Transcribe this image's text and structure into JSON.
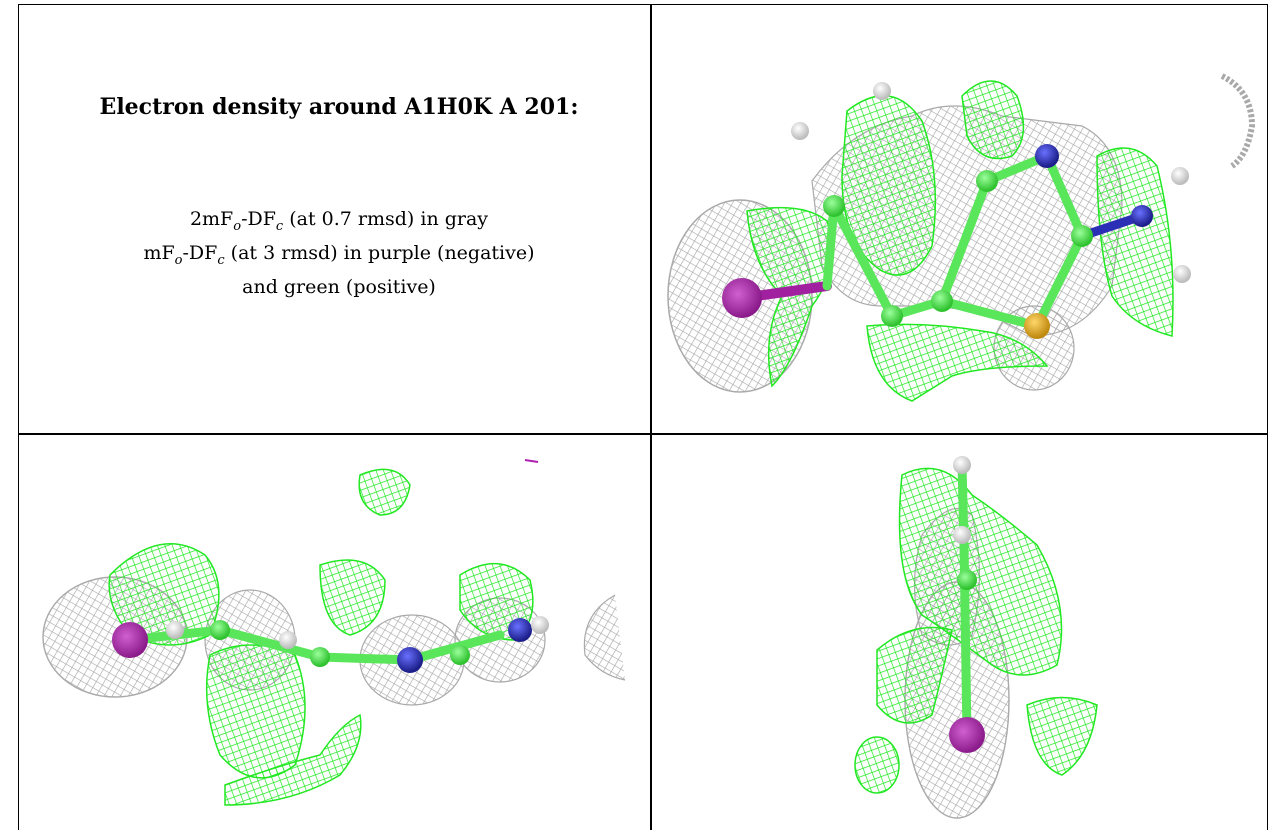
{
  "title": "Electron density around A1H0K A 201:",
  "legend": {
    "line1_prefix": "2mF",
    "line1_sub_o": "o",
    "line1_mid": "-DF",
    "line1_sub_c": "c",
    "line1_suffix": " (at 0.7 rmsd) in gray",
    "line2_prefix": "mF",
    "line2_sub_o": "o",
    "line2_mid": "-DF",
    "line2_sub_c": "c",
    "line2_suffix": " (at 3 rmsd) in purple (negative)",
    "line3": "and green (positive)"
  },
  "colors": {
    "mesh_gray": "#a9a9a9",
    "mesh_green": "#22e822",
    "carbon": "#5ae65a",
    "nitrogen": "#2b2fb5",
    "sulfur": "#e0b030",
    "iodine": "#a020a0",
    "hydrogen": "#e8e8e8"
  }
}
